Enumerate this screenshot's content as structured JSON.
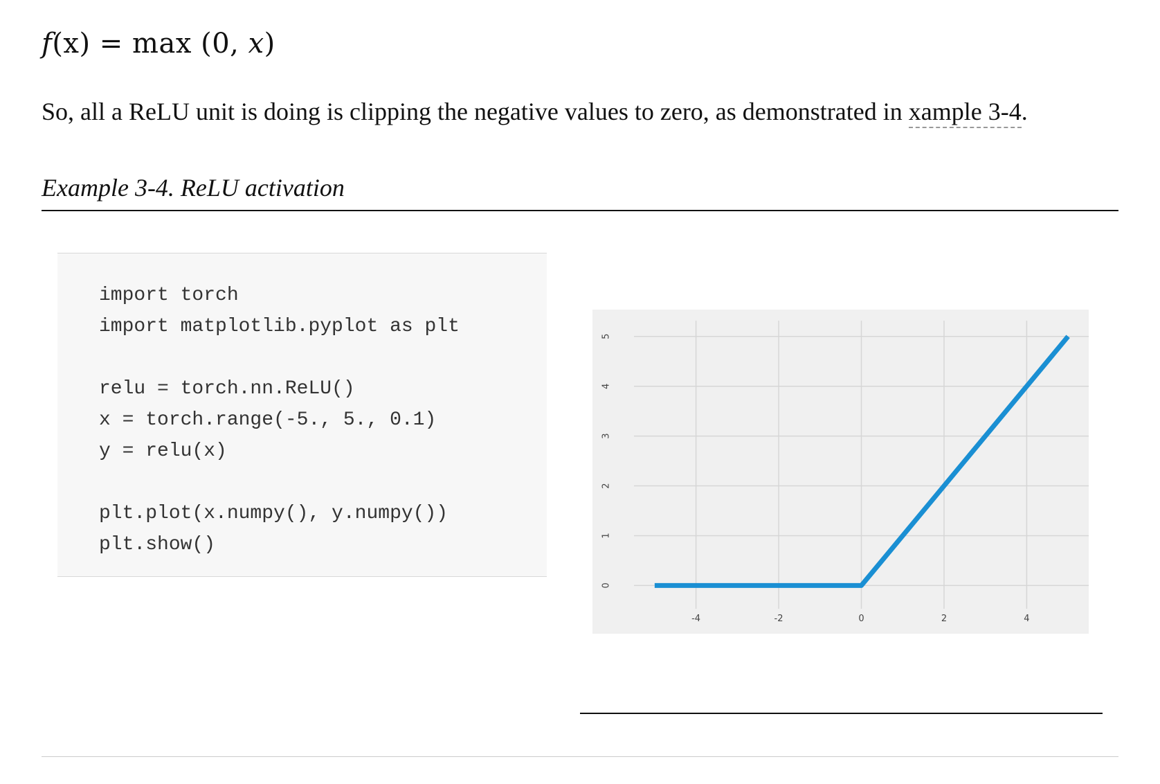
{
  "formula": {
    "lhs_fn": "f",
    "lhs_arg": "(x)",
    "equals": " = ",
    "rhs": "max (0, ",
    "rhs_var": "x",
    "rhs_close": ")"
  },
  "paragraph": {
    "text": "So, all a ReLU unit is doing is clipping the negative values to zero, as demonstrated in ",
    "link_text": "xample 3-4",
    "end": "."
  },
  "example": {
    "title": "Example 3-4. ReLU activation"
  },
  "code": {
    "lines": [
      "import torch",
      "import matplotlib.pyplot as plt",
      "",
      "relu = torch.nn.ReLU()",
      "x = torch.range(-5., 5., 0.1)",
      "y = relu(x)",
      "",
      "plt.plot(x.numpy(), y.numpy())",
      "plt.show()"
    ]
  },
  "chart_data": {
    "type": "line",
    "title": "",
    "xlabel": "",
    "ylabel": "",
    "xlim": [
      -5.5,
      5.5
    ],
    "ylim": [
      -0.3,
      5.4
    ],
    "x_ticks": [
      -4,
      -2,
      0,
      2,
      4
    ],
    "x_tick_labels": [
      "-4",
      "-2",
      "0",
      "2",
      "4"
    ],
    "y_ticks": [
      0,
      1,
      2,
      3,
      4,
      5
    ],
    "y_tick_labels": [
      "0",
      "1",
      "2",
      "3",
      "4",
      "5"
    ],
    "grid": true,
    "series": [
      {
        "x": [
          -5,
          0,
          5
        ],
        "y": [
          0,
          0,
          5
        ]
      }
    ],
    "colors": {
      "line": "#1a8fd3",
      "background": "#f0f0f0",
      "grid": "#d6d6d6"
    }
  }
}
